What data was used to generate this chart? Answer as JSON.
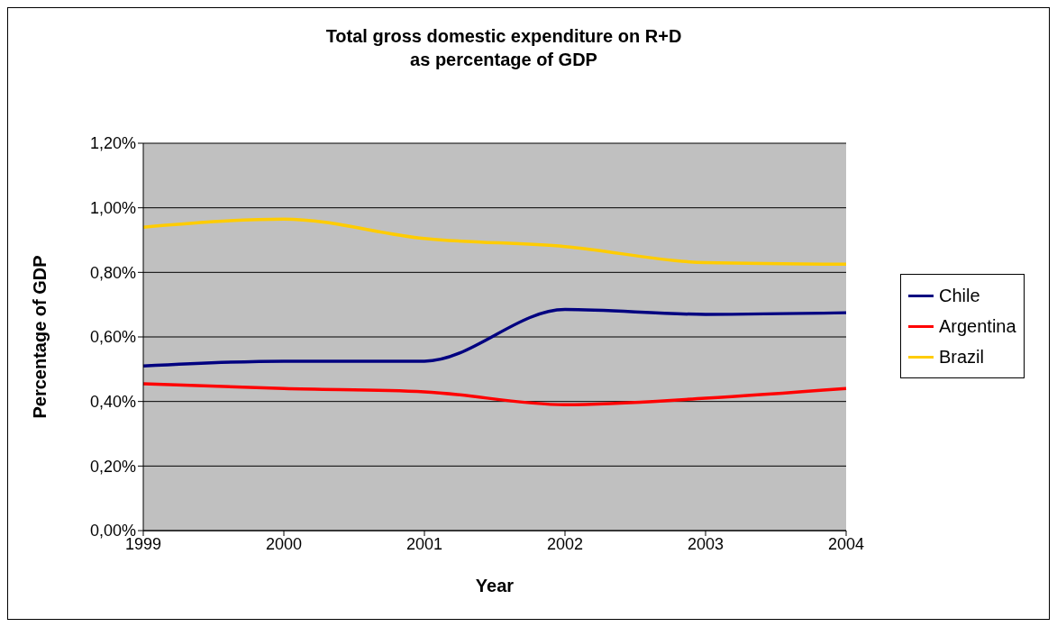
{
  "chart_data": {
    "type": "line",
    "title": "Total gross domestic expenditure on R+D\nas percentage of GDP",
    "xlabel": "Year",
    "ylabel": "Percentage of GDP",
    "categories": [
      "1999",
      "2000",
      "2001",
      "2002",
      "2003",
      "2004"
    ],
    "series": [
      {
        "name": "Chile",
        "color": "#000080",
        "values": [
          0.51,
          0.525,
          0.525,
          0.685,
          0.67,
          0.675
        ]
      },
      {
        "name": "Argentina",
        "color": "#ff0000",
        "values": [
          0.455,
          0.44,
          0.43,
          0.39,
          0.41,
          0.44
        ]
      },
      {
        "name": "Brazil",
        "color": "#ffcc00",
        "values": [
          0.94,
          0.965,
          0.905,
          0.88,
          0.83,
          0.825
        ]
      }
    ],
    "ylim": [
      0,
      1.2
    ],
    "yticks": [
      {
        "value": 0,
        "label": "0,00%"
      },
      {
        "value": 0.2,
        "label": "0,20%"
      },
      {
        "value": 0.4,
        "label": "0,40%"
      },
      {
        "value": 0.6,
        "label": "0,60%"
      },
      {
        "value": 0.8,
        "label": "0,80%"
      },
      {
        "value": 1,
        "label": "1,00%"
      },
      {
        "value": 1.2,
        "label": "1,20%"
      }
    ],
    "grid": "y",
    "legend": "right",
    "marker": "none",
    "line_style": "solid"
  }
}
